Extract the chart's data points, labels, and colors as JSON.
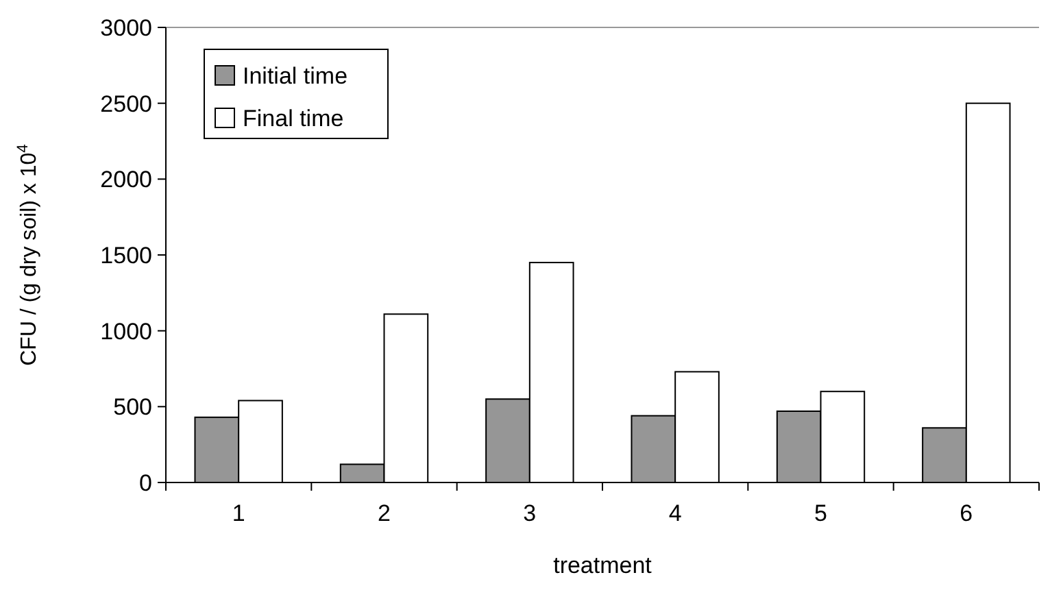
{
  "chart_data": {
    "type": "bar",
    "xlabel": "treatment",
    "ylabel": "CFU / (g dry soil) x 10$^{4}$",
    "categories": [
      "1",
      "2",
      "3",
      "4",
      "5",
      "6"
    ],
    "series": [
      {
        "name": "Initial time",
        "color": "#969696",
        "values": [
          430,
          120,
          550,
          440,
          470,
          360
        ]
      },
      {
        "name": "Final time",
        "color": "#ffffff",
        "values": [
          540,
          1110,
          1450,
          730,
          600,
          2500
        ]
      }
    ],
    "ylim": [
      0,
      3000
    ],
    "yticks": [
      0,
      500,
      1000,
      1500,
      2000,
      2500,
      3000
    ],
    "grid": false,
    "legend": "top left"
  }
}
